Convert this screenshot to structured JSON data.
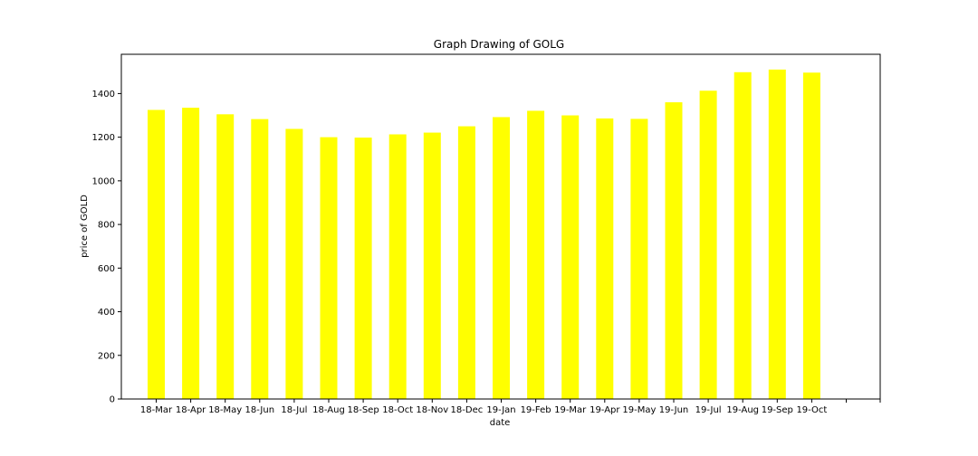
{
  "chart_data": {
    "type": "bar",
    "title": "Graph Drawing of GOLG",
    "xlabel": "date",
    "ylabel": "price of GOLD",
    "categories": [
      "18-Mar",
      "18-Apr",
      "18-May",
      "18-Jun",
      "18-Jul",
      "18-Aug",
      "18-Sep",
      "18-Oct",
      "18-Nov",
      "18-Dec",
      "19-Jan",
      "19-Feb",
      "19-Mar",
      "19-Apr",
      "19-May",
      "19-Jun",
      "19-Jul",
      "19-Aug",
      "19-Sep",
      "19-Oct"
    ],
    "values": [
      1325,
      1335,
      1305,
      1283,
      1238,
      1200,
      1198,
      1213,
      1221,
      1250,
      1292,
      1321,
      1300,
      1286,
      1284,
      1360,
      1413,
      1498,
      1510,
      1496
    ],
    "ylim": [
      0,
      1580
    ],
    "yticks": [
      0,
      200,
      400,
      600,
      800,
      1000,
      1200,
      1400
    ],
    "bar_color": "#ffff00",
    "grid": false,
    "legend": "none"
  }
}
